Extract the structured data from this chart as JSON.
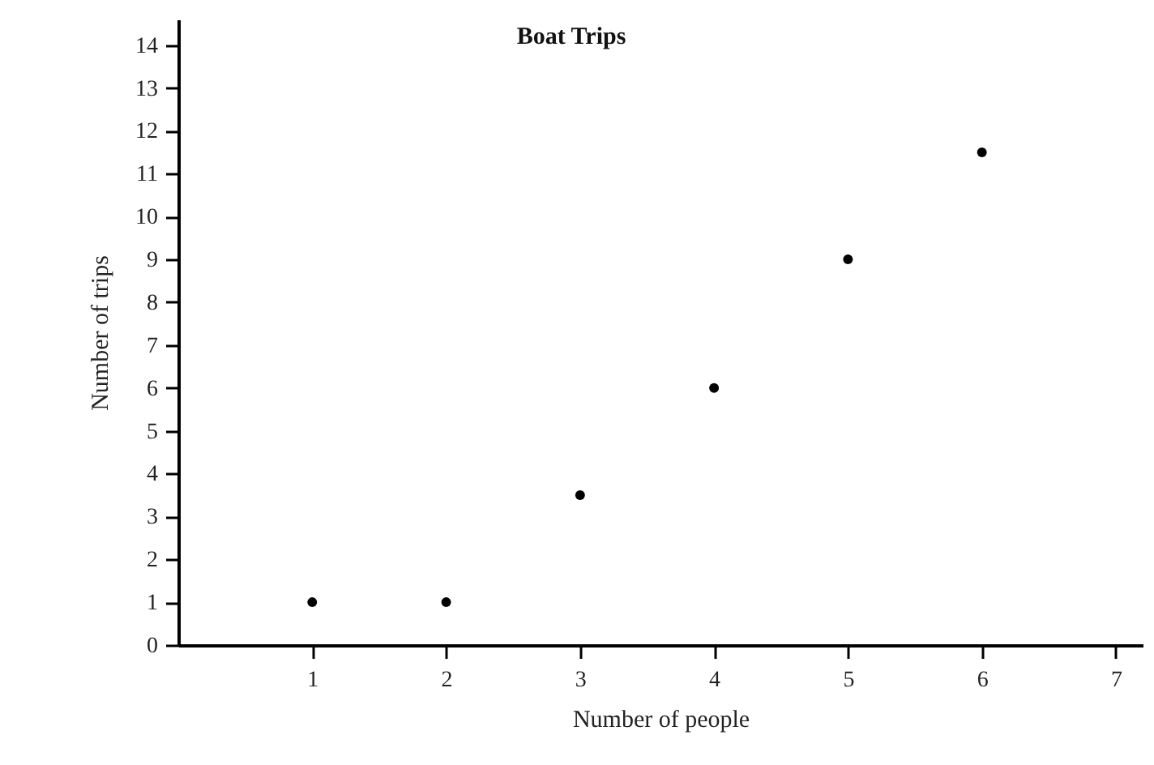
{
  "chart_data": {
    "type": "scatter",
    "title": "Boat Trips",
    "xlabel": "Number of people",
    "ylabel": "Number of trips",
    "x": [
      1,
      2,
      3,
      4,
      5,
      6
    ],
    "series": [
      {
        "color": "#000000",
        "values": [
          1,
          1,
          3.5,
          6,
          9,
          11.5
        ]
      }
    ],
    "xlim": [
      0,
      7.2
    ],
    "xticks": [
      1,
      2,
      3,
      4,
      5,
      6,
      7
    ],
    "ylim": [
      0,
      14.6
    ],
    "yticks": [
      0,
      1,
      2,
      3,
      4,
      5,
      6,
      7,
      8,
      9,
      10,
      11,
      12,
      13,
      14
    ],
    "grid": false,
    "marker": "circle"
  }
}
